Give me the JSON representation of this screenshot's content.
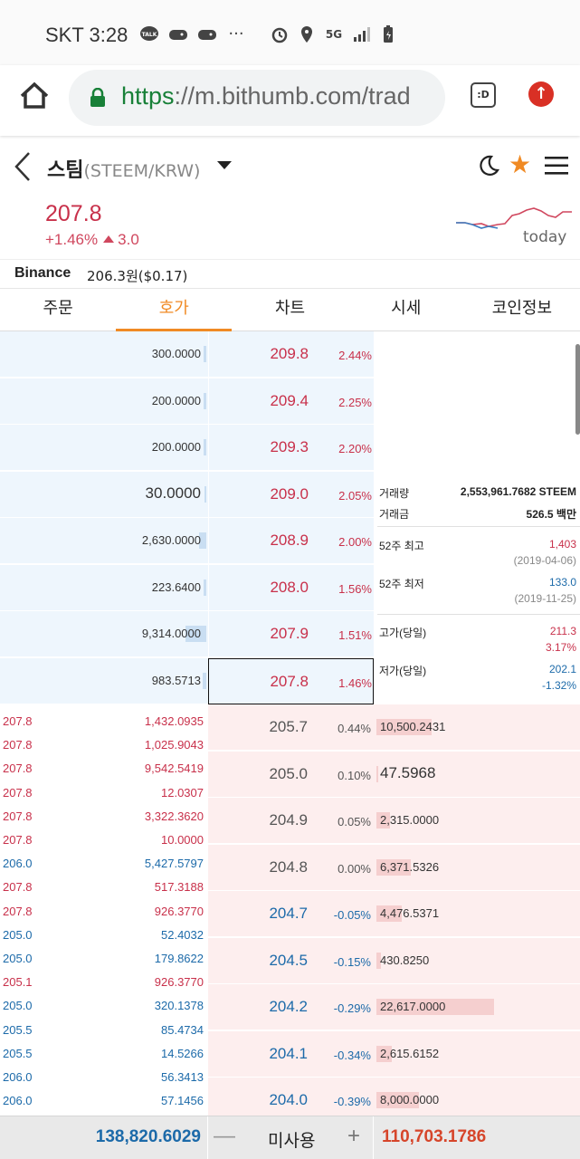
{
  "status_bar": {
    "carrier_time": "SKT 3:28",
    "icons": [
      "talk-icon",
      "game-icon",
      "game-icon",
      "more-icon",
      "alarm-icon",
      "location-icon",
      "5g-icon",
      "signal-icon",
      "battery-icon"
    ],
    "more": "···",
    "net": "5G",
    "talk": "TALK"
  },
  "browser": {
    "scheme": "https",
    "url_rest": "://m.bithumb.com/trad",
    "tab_label": ":D",
    "update_glyph": "↑"
  },
  "header": {
    "coin_name": "스팀",
    "pair": "(STEEM/KRW)"
  },
  "price": {
    "current": "207.8",
    "change_pct": "+1.46%",
    "change_abs": "3.0",
    "sparkline_label": "today",
    "accent": "#c8304a"
  },
  "binance": {
    "label": "Binance",
    "value": "206.3원($0.17)"
  },
  "tabs": [
    "주문",
    "호가",
    "차트",
    "시세",
    "코인정보"
  ],
  "active_tab": "호가",
  "asks": [
    {
      "qty": "300.0000",
      "price": "209.8",
      "pct": "2.44%",
      "bar": 0.02
    },
    {
      "qty": "200.0000",
      "price": "209.4",
      "pct": "2.25%",
      "bar": 0.01
    },
    {
      "qty": "200.0000",
      "price": "209.3",
      "pct": "2.20%",
      "bar": 0.01
    },
    {
      "qty": "30.0000",
      "price": "209.0",
      "pct": "2.05%",
      "bar": 0.0,
      "big": true
    },
    {
      "qty": "2,630.0000",
      "price": "208.9",
      "pct": "2.00%",
      "bar": 0.12
    },
    {
      "qty": "223.6400",
      "price": "208.0",
      "pct": "1.56%",
      "bar": 0.01
    },
    {
      "qty": "9,314.0000",
      "price": "207.9",
      "pct": "1.51%",
      "bar": 0.42
    },
    {
      "qty": "983.5713",
      "price": "207.8",
      "pct": "1.46%",
      "bar": 0.04,
      "current": true
    }
  ],
  "info": {
    "volume_label": "거래량",
    "volume_value": "2,553,961.7682 STEEM",
    "amount_label": "거래금",
    "amount_value": "526.5 백만",
    "high52_label": "52주 최고",
    "high52_value": "1,403",
    "high52_date": "(2019-04-06)",
    "low52_label": "52주 최저",
    "low52_value": "133.0",
    "low52_date": "(2019-11-25)",
    "day_high_label": "고가(당일)",
    "day_high_value": "211.3",
    "day_high_pct": "3.17%",
    "day_low_label": "저가(당일)",
    "day_low_value": "202.1",
    "day_low_pct": "-1.32%"
  },
  "bids": [
    {
      "price": "205.7",
      "pct": "0.44%",
      "qty": "10,500.2431",
      "color": "gray",
      "bar": 0.46
    },
    {
      "price": "205.0",
      "pct": "0.10%",
      "qty": "47.5968",
      "color": "gray",
      "bar": 0.0,
      "big": true
    },
    {
      "price": "204.9",
      "pct": "0.05%",
      "qty": "2,315.0000",
      "color": "gray",
      "bar": 0.1
    },
    {
      "price": "204.8",
      "pct": "0.00%",
      "qty": "6,371.5326",
      "color": "gray",
      "bar": 0.28
    },
    {
      "price": "204.7",
      "pct": "-0.05%",
      "qty": "4,476.5371",
      "color": "blue",
      "bar": 0.2
    },
    {
      "price": "204.5",
      "pct": "-0.15%",
      "qty": "430.8250",
      "color": "blue",
      "bar": 0.02
    },
    {
      "price": "204.2",
      "pct": "-0.29%",
      "qty": "22,617.0000",
      "color": "blue",
      "bar": 1.0
    },
    {
      "price": "204.1",
      "pct": "-0.34%",
      "qty": "2,615.6152",
      "color": "blue",
      "bar": 0.12
    },
    {
      "price": "204.0",
      "pct": "-0.39%",
      "qty": "8,000.0000",
      "color": "blue",
      "bar": 0.35
    }
  ],
  "trades": [
    {
      "price": "207.8",
      "qty": "1,432.0935",
      "color": "red"
    },
    {
      "price": "207.8",
      "qty": "1,025.9043",
      "color": "red"
    },
    {
      "price": "207.8",
      "qty": "9,542.5419",
      "color": "red"
    },
    {
      "price": "207.8",
      "qty": "12.0307",
      "color": "red"
    },
    {
      "price": "207.8",
      "qty": "3,322.3620",
      "color": "red"
    },
    {
      "price": "207.8",
      "qty": "10.0000",
      "color": "red"
    },
    {
      "price": "206.0",
      "qty": "5,427.5797",
      "color": "blue"
    },
    {
      "price": "207.8",
      "qty": "517.3188",
      "color": "red"
    },
    {
      "price": "207.8",
      "qty": "926.3770",
      "color": "red"
    },
    {
      "price": "205.0",
      "qty": "52.4032",
      "color": "blue"
    },
    {
      "price": "205.0",
      "qty": "179.8622",
      "color": "blue"
    },
    {
      "price": "205.1",
      "qty": "926.3770",
      "color": "red"
    },
    {
      "price": "205.0",
      "qty": "320.1378",
      "color": "blue"
    },
    {
      "price": "205.5",
      "qty": "85.4734",
      "color": "blue"
    },
    {
      "price": "205.5",
      "qty": "14.5266",
      "color": "blue"
    },
    {
      "price": "206.0",
      "qty": "56.3413",
      "color": "blue"
    },
    {
      "price": "206.0",
      "qty": "57.1456",
      "color": "blue"
    }
  ],
  "bottom": {
    "ask_total": "138,820.6029",
    "unused_label": "미사용",
    "bid_total": "110,703.1786",
    "minus": "—",
    "plus": "+"
  }
}
